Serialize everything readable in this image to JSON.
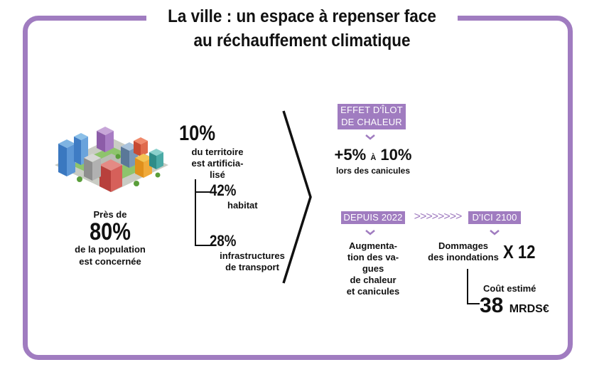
{
  "title": {
    "line1": "La ville : un espace à repenser face",
    "line2": "au réchauffement climatique"
  },
  "population": {
    "intro": "Près de",
    "percent": "80%",
    "line1": "de la population",
    "line2": "est concernée"
  },
  "territoire": {
    "percent": "10%",
    "line1": "du territoire",
    "line2": "est artificia-",
    "line3": "lisé",
    "habitat_percent": "42%",
    "habitat_label": "habitat",
    "transport_percent": "28%",
    "transport_line1": "infrastructures",
    "transport_line2": "de transport"
  },
  "ilot": {
    "tag_line1": "EFFET D'ÎLOT",
    "tag_line2": "DE CHALEUR",
    "value_start": "+5%",
    "value_mid": "À",
    "value_end": "10%",
    "label": "lors des canicules"
  },
  "depuis": {
    "tag": "DEPUIS 2022",
    "line1": "Augmenta-",
    "line2": "tion des va-",
    "line3": "gues",
    "line4": "de chaleur",
    "line5": "et canicules"
  },
  "arrows": ">>>>>>>>",
  "ici": {
    "tag": "D'ICI 2100",
    "line1": "Dommages",
    "line2": "des inondations",
    "multiplier": "X 12",
    "cost_label": "Coût estimé",
    "cost_value": "38",
    "cost_unit": "MRDS€"
  },
  "colors": {
    "accent": "#a07cc0"
  }
}
